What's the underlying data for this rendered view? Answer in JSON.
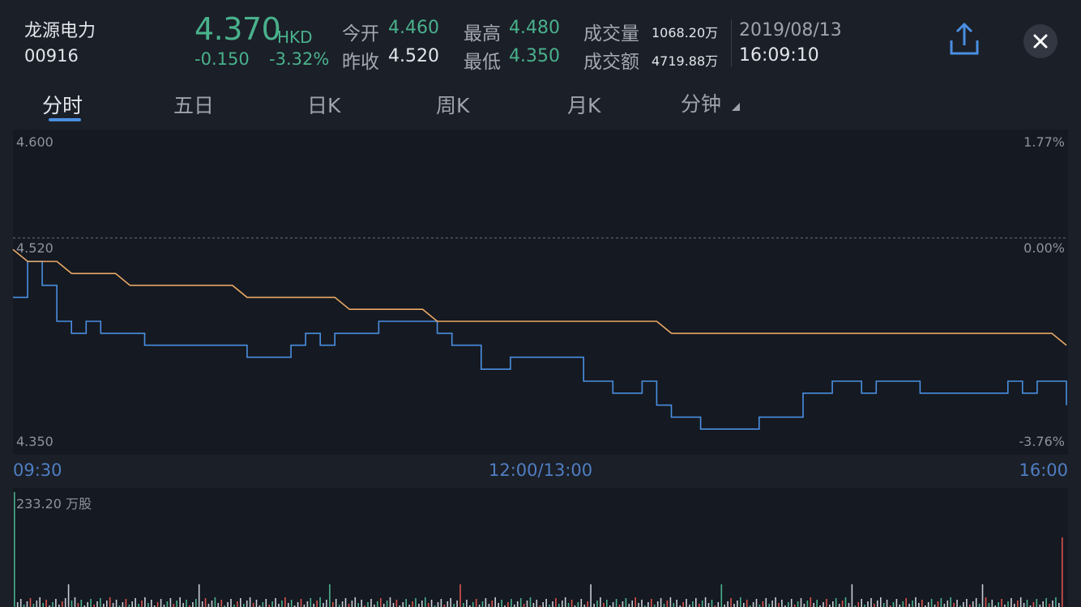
{
  "stock": {
    "name": "龙源电力",
    "code": "00916",
    "price": "4.370",
    "currency": "HKD",
    "change": "-0.150",
    "change_pct": "-3.32%"
  },
  "quote": {
    "open_label": "今开",
    "open": "4.460",
    "prev_close_label": "昨收",
    "prev_close": "4.520",
    "high_label": "最高",
    "high": "4.480",
    "low_label": "最低",
    "low": "4.350",
    "volume_label": "成交量",
    "volume": "1068.20万",
    "amount_label": "成交额",
    "amount": "4719.88万",
    "date": "2019/08/13",
    "time": "16:09:10"
  },
  "tabs": [
    "分时",
    "五日",
    "日K",
    "周K",
    "月K",
    "分钟"
  ],
  "active_tab": "分时",
  "icons": {
    "share": "share-icon",
    "close": "close-icon",
    "dropdown": "triangle-icon"
  },
  "colors": {
    "price_line": "#4a8fe2",
    "avg_line": "#e9a866",
    "down": "#49b18c",
    "up": "#d9534f"
  },
  "chart": {
    "y_top": "4.600",
    "y_mid": "4.520",
    "y_bottom": "4.350",
    "pct_top": "1.77%",
    "pct_mid": "0.00%",
    "pct_bottom": "-3.76%",
    "x_start": "09:30",
    "x_mid": "12:00/13:00",
    "x_end": "16:00",
    "volume_label": "233.20 万股"
  },
  "chart_data": {
    "type": "line",
    "ylim": [
      4.35,
      4.6
    ],
    "prev_close": 4.52,
    "series": [
      {
        "values": [
          4.47,
          4.5,
          4.48,
          4.45,
          4.44,
          4.45,
          4.44,
          4.44,
          4.44,
          4.43,
          4.43,
          4.43,
          4.43,
          4.43,
          4.43,
          4.43,
          4.42,
          4.42,
          4.42,
          4.43,
          4.44,
          4.43,
          4.44,
          4.44,
          4.44,
          4.45,
          4.45,
          4.45,
          4.45,
          4.44,
          4.43,
          4.43,
          4.41,
          4.41,
          4.42,
          4.42,
          4.42,
          4.42,
          4.42,
          4.4,
          4.4,
          4.39,
          4.39,
          4.4,
          4.38,
          4.37,
          4.37,
          4.36,
          4.36,
          4.36,
          4.36,
          4.37,
          4.37,
          4.37,
          4.39,
          4.39,
          4.4,
          4.4,
          4.39,
          4.4,
          4.4,
          4.4,
          4.39,
          4.39,
          4.39,
          4.39,
          4.39,
          4.39,
          4.4,
          4.39,
          4.4,
          4.4,
          4.38
        ]
      },
      {
        "values": [
          4.51,
          4.5,
          4.5,
          4.5,
          4.49,
          4.49,
          4.49,
          4.49,
          4.48,
          4.48,
          4.48,
          4.48,
          4.48,
          4.48,
          4.48,
          4.48,
          4.47,
          4.47,
          4.47,
          4.47,
          4.47,
          4.47,
          4.47,
          4.46,
          4.46,
          4.46,
          4.46,
          4.46,
          4.46,
          4.45,
          4.45,
          4.45,
          4.45,
          4.45,
          4.45,
          4.45,
          4.45,
          4.45,
          4.45,
          4.45,
          4.45,
          4.45,
          4.45,
          4.45,
          4.45,
          4.44,
          4.44,
          4.44,
          4.44,
          4.44,
          4.44,
          4.44,
          4.44,
          4.44,
          4.44,
          4.44,
          4.44,
          4.44,
          4.44,
          4.44,
          4.44,
          4.44,
          4.44,
          4.44,
          4.44,
          4.44,
          4.44,
          4.44,
          4.44,
          4.44,
          4.44,
          4.44,
          4.43
        ]
      }
    ],
    "volume_max": 233.2
  }
}
